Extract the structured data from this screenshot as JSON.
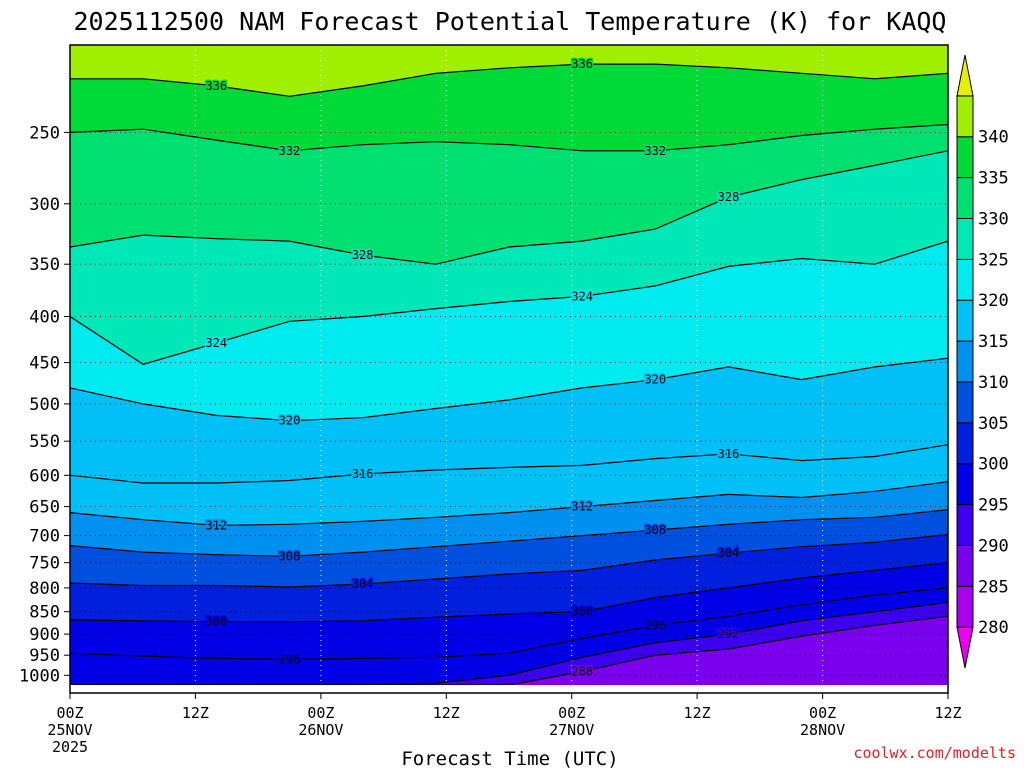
{
  "chart_data": {
    "type": "heatmap",
    "title": "2025112500 NAM Forecast Potential Temperature (K) for KAQQ",
    "xlabel": "Forecast Time (UTC)",
    "ylabel": "",
    "credit": "coolwx.com/modelts",
    "x_ticks": [
      {
        "hours": 0,
        "line1": "00Z",
        "line2": "25NOV",
        "line3": "2025"
      },
      {
        "hours": 12,
        "line1": "12Z",
        "line2": "",
        "line3": ""
      },
      {
        "hours": 24,
        "line1": "00Z",
        "line2": "26NOV",
        "line3": ""
      },
      {
        "hours": 36,
        "line1": "12Z",
        "line2": "",
        "line3": ""
      },
      {
        "hours": 48,
        "line1": "00Z",
        "line2": "27NOV",
        "line3": ""
      },
      {
        "hours": 60,
        "line1": "12Z",
        "line2": "",
        "line3": ""
      },
      {
        "hours": 72,
        "line1": "00Z",
        "line2": "28NOV",
        "line3": ""
      },
      {
        "hours": 84,
        "line1": "12Z",
        "line2": "",
        "line3": ""
      }
    ],
    "x_range_hours": [
      0,
      84
    ],
    "y_ticks": [
      250,
      300,
      350,
      400,
      450,
      500,
      550,
      600,
      650,
      700,
      750,
      800,
      850,
      900,
      950,
      1000
    ],
    "y_tick_labels": [
      "250",
      "300",
      "350",
      "400",
      "450",
      "500",
      "550",
      "600",
      "650",
      "700",
      "750",
      "800",
      "850",
      "900",
      "950",
      "1000"
    ],
    "y_range_hPa": [
      200,
      1025
    ],
    "colorbar": {
      "levels": [
        280,
        285,
        290,
        295,
        300,
        305,
        310,
        315,
        320,
        325,
        330,
        335,
        340
      ],
      "labels": [
        "280",
        "285",
        "290",
        "295",
        "300",
        "305",
        "310",
        "315",
        "320",
        "325",
        "330",
        "335",
        "340"
      ],
      "colors": [
        "#ee00ee",
        "#aa00ee",
        "#7a00ee",
        "#3d00ee",
        "#0000e6",
        "#0020dd",
        "#0050e0",
        "#0090f0",
        "#00c0f8",
        "#00ebf0",
        "#00e8b8",
        "#00e070",
        "#00da38",
        "#a0ef00",
        "#e8f000"
      ]
    },
    "contours": [
      {
        "theta": 336,
        "label": "336",
        "pressures": [
          218,
          218,
          222,
          228,
          222,
          215,
          212,
          210,
          210,
          212,
          215,
          218,
          215
        ]
      },
      {
        "theta": 332,
        "label": "332",
        "pressures": [
          250,
          248,
          255,
          262,
          258,
          256,
          258,
          262,
          262,
          258,
          252,
          248,
          245
        ]
      },
      {
        "theta": 328,
        "label": "328",
        "pressures": [
          335,
          325,
          328,
          330,
          342,
          350,
          335,
          330,
          320,
          295,
          282,
          272,
          262
        ]
      },
      {
        "theta": 324,
        "label": "324",
        "pressures": [
          400,
          452,
          428,
          405,
          400,
          392,
          385,
          380,
          370,
          352,
          345,
          350,
          330
        ]
      },
      {
        "theta": 320,
        "label": "320",
        "pressures": [
          480,
          500,
          515,
          522,
          518,
          506,
          495,
          480,
          470,
          455,
          470,
          455,
          445
        ]
      },
      {
        "theta": 316,
        "label": "316",
        "pressures": [
          600,
          612,
          612,
          608,
          598,
          592,
          588,
          585,
          575,
          568,
          578,
          572,
          555
        ]
      },
      {
        "theta": 312,
        "label": "312",
        "pressures": [
          660,
          672,
          682,
          680,
          675,
          668,
          660,
          650,
          640,
          630,
          635,
          625,
          610
        ]
      },
      {
        "theta": 308,
        "label": "308",
        "pressures": [
          718,
          730,
          735,
          738,
          730,
          720,
          710,
          700,
          690,
          680,
          672,
          668,
          655
        ]
      },
      {
        "theta": 304,
        "label": "304",
        "pressures": [
          790,
          795,
          795,
          798,
          792,
          782,
          772,
          765,
          745,
          732,
          720,
          712,
          698
        ]
      },
      {
        "theta": 300,
        "label": "300",
        "pressures": [
          868,
          870,
          872,
          872,
          870,
          862,
          855,
          850,
          820,
          800,
          780,
          765,
          750
        ]
      },
      {
        "theta": 296,
        "label": "296",
        "pressures": [
          945,
          952,
          958,
          960,
          958,
          955,
          945,
          910,
          880,
          860,
          835,
          815,
          800
        ]
      },
      {
        "theta": 292,
        "label": "292",
        "pressures": [
          1025,
          1025,
          1025,
          1025,
          1025,
          1020,
          1000,
          955,
          920,
          900,
          870,
          850,
          830
        ]
      },
      {
        "theta": 288,
        "label": "288",
        "pressures": [
          1025,
          1025,
          1025,
          1025,
          1025,
          1025,
          1025,
          990,
          950,
          935,
          905,
          880,
          860
        ]
      }
    ],
    "contour_hours": [
      0,
      7,
      14,
      21,
      28,
      35,
      42,
      49,
      56,
      63,
      70,
      77,
      84
    ]
  }
}
